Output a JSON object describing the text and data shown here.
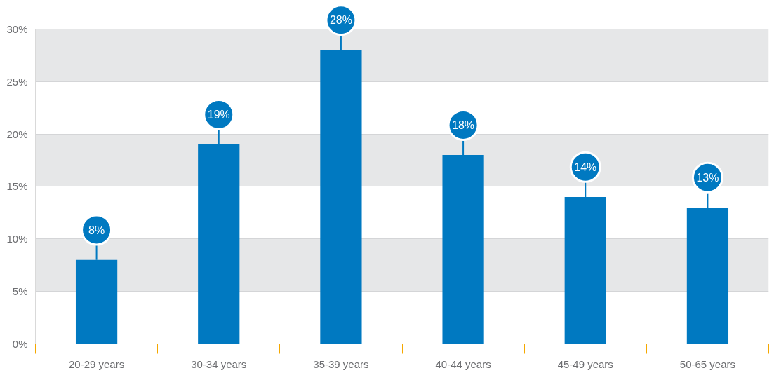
{
  "chart_data": {
    "type": "bar",
    "categories": [
      "20-29 years",
      "30-34 years",
      "35-39 years",
      "40-44 years",
      "45-49 years",
      "50-65 years"
    ],
    "values": [
      8,
      19,
      28,
      18,
      14,
      13
    ],
    "value_labels": [
      "8%",
      "19%",
      "28%",
      "18%",
      "14%",
      "13%"
    ],
    "color": "#0079c1",
    "ylim": [
      0,
      30
    ],
    "yticks": [
      {
        "value": 0,
        "label": "0%"
      },
      {
        "value": 5,
        "label": "5%"
      },
      {
        "value": 10,
        "label": "10%"
      },
      {
        "value": 15,
        "label": "15%"
      },
      {
        "value": 20,
        "label": "20%"
      },
      {
        "value": 25,
        "label": "25%"
      },
      {
        "value": 30,
        "label": "30%"
      }
    ],
    "grid": "y"
  }
}
